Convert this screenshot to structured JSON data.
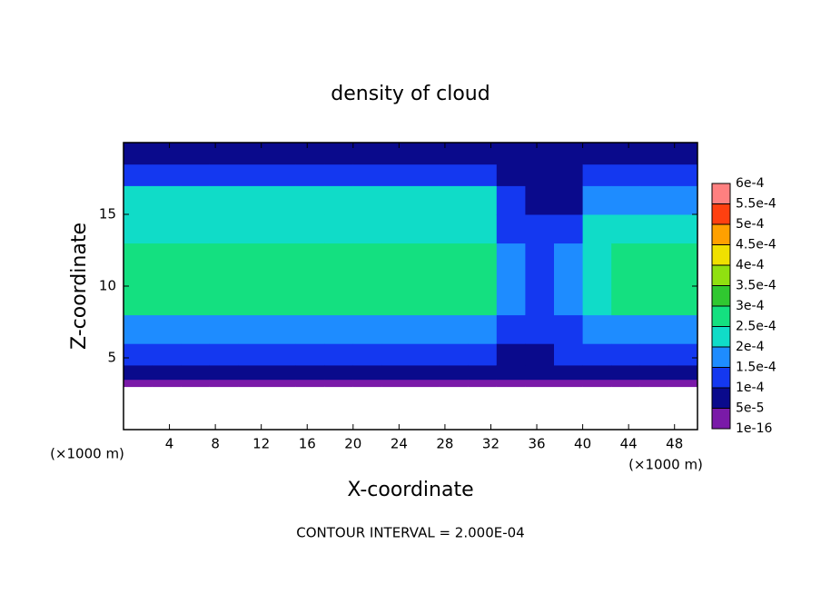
{
  "chart_data": {
    "type": "heatmap",
    "title": "density of cloud",
    "x_label": "X-coordinate",
    "y_label": "Z-coordinate",
    "x_unit": "(×1000 m)",
    "y_unit": "(×1000 m)",
    "footer": "CONTOUR INTERVAL = 2.000E-04",
    "xlim": [
      0,
      50
    ],
    "ylim": [
      0,
      20
    ],
    "xticks": [
      4,
      8,
      12,
      16,
      20,
      24,
      28,
      32,
      36,
      40,
      44,
      48
    ],
    "yticks": [
      5,
      10,
      15
    ],
    "x_edges": [
      0,
      2.5,
      5,
      7.5,
      10,
      12.5,
      15,
      17.5,
      20,
      22.5,
      25,
      27.5,
      30,
      32.5,
      35,
      37.5,
      40,
      42.5,
      45,
      47.5,
      50
    ],
    "z_edges": [
      0,
      3,
      3.5,
      4.5,
      6,
      8,
      13,
      15,
      17,
      18.5,
      20
    ],
    "values": [
      [
        0,
        3e-05,
        8e-05,
        0.00013,
        0.00019,
        0.00027,
        0.00024,
        0.00021,
        0.00013,
        8e-05
      ],
      [
        0,
        3e-05,
        8e-05,
        0.00013,
        0.00019,
        0.00027,
        0.00024,
        0.00021,
        0.00013,
        8e-05
      ],
      [
        0,
        3e-05,
        8e-05,
        0.00013,
        0.00019,
        0.00027,
        0.00024,
        0.00021,
        0.00013,
        8e-05
      ],
      [
        0,
        3e-05,
        8e-05,
        0.00013,
        0.00019,
        0.00027,
        0.00024,
        0.00021,
        0.00013,
        8e-05
      ],
      [
        0,
        3e-05,
        8e-05,
        0.00013,
        0.00019,
        0.00027,
        0.00024,
        0.00021,
        0.00013,
        8e-05
      ],
      [
        0,
        3e-05,
        8e-05,
        0.00013,
        0.00019,
        0.00027,
        0.00024,
        0.00021,
        0.00013,
        8e-05
      ],
      [
        0,
        3e-05,
        8e-05,
        0.00013,
        0.00019,
        0.00027,
        0.00024,
        0.00021,
        0.00013,
        8e-05
      ],
      [
        0,
        3e-05,
        8e-05,
        0.00013,
        0.00019,
        0.00027,
        0.00024,
        0.00021,
        0.00013,
        8e-05
      ],
      [
        0,
        3e-05,
        8e-05,
        0.00013,
        0.00019,
        0.00027,
        0.00024,
        0.00021,
        0.00013,
        8e-05
      ],
      [
        0,
        3e-05,
        8e-05,
        0.00013,
        0.00019,
        0.00027,
        0.00024,
        0.00021,
        0.00013,
        8e-05
      ],
      [
        0,
        3e-05,
        8e-05,
        0.00013,
        0.00019,
        0.00027,
        0.00024,
        0.00021,
        0.00013,
        8e-05
      ],
      [
        0,
        3e-05,
        8e-05,
        0.00013,
        0.00019,
        0.00027,
        0.00024,
        0.00021,
        0.00013,
        8e-05
      ],
      [
        0,
        3e-05,
        8e-05,
        0.00013,
        0.00018,
        0.00026,
        0.00023,
        0.00021,
        0.00012,
        8e-05
      ],
      [
        0,
        3e-05,
        6e-05,
        8e-05,
        0.00011,
        0.00016,
        0.00013,
        0.0001,
        7e-05,
        6e-05
      ],
      [
        0,
        3e-05,
        6e-05,
        8e-05,
        0.00012,
        0.00014,
        0.00011,
        7e-05,
        6e-05,
        7e-05
      ],
      [
        0,
        3e-05,
        7e-05,
        0.00011,
        0.00014,
        0.00016,
        0.00012,
        9e-05,
        8e-05,
        8e-05
      ],
      [
        0,
        3e-05,
        8e-05,
        0.00012,
        0.00016,
        0.00022,
        0.00021,
        0.00016,
        0.00011,
        8e-05
      ],
      [
        0,
        3e-05,
        8e-05,
        0.00013,
        0.00018,
        0.00026,
        0.00023,
        0.00017,
        0.00012,
        8e-05
      ],
      [
        0,
        3e-05,
        8e-05,
        0.00013,
        0.00018,
        0.00026,
        0.00023,
        0.00017,
        0.00012,
        8e-05
      ],
      [
        0,
        3e-05,
        8e-05,
        0.00013,
        0.00018,
        0.00026,
        0.00023,
        0.00017,
        0.00012,
        8e-05
      ]
    ],
    "colorbar_ticks": [
      {
        "value": 1e-16,
        "label": "1e-16"
      },
      {
        "value": 5e-05,
        "label": "5e-5"
      },
      {
        "value": 0.0001,
        "label": "1e-4"
      },
      {
        "value": 0.00015,
        "label": "1.5e-4"
      },
      {
        "value": 0.0002,
        "label": "2e-4"
      },
      {
        "value": 0.00025,
        "label": "2.5e-4"
      },
      {
        "value": 0.0003,
        "label": "3e-4"
      },
      {
        "value": 0.00035,
        "label": "3.5e-4"
      },
      {
        "value": 0.0004,
        "label": "4e-4"
      },
      {
        "value": 0.00045,
        "label": "4.5e-4"
      },
      {
        "value": 0.0005,
        "label": "5e-4"
      },
      {
        "value": 0.00055,
        "label": "5.5e-4"
      },
      {
        "value": 0.0006,
        "label": "6e-4"
      }
    ],
    "colors": [
      "#7a1aa8",
      "#0a0a8c",
      "#1438f0",
      "#1e8cff",
      "#10dcc8",
      "#14e080",
      "#30c830",
      "#90e010",
      "#f0e000",
      "#ffa000",
      "#ff4010",
      "#ff8080"
    ]
  }
}
